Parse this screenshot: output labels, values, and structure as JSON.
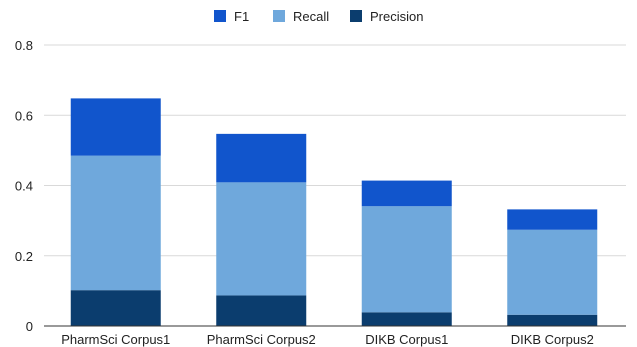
{
  "chart_data": {
    "type": "bar",
    "stacked": true,
    "categories": [
      "PharmSci Corpus1",
      "PharmSci Corpus2",
      "DIKB Corpus1",
      "DIKB Corpus2"
    ],
    "series": [
      {
        "name": "Precision",
        "values": [
          0.102,
          0.087,
          0.039,
          0.032
        ],
        "color": "#0b3d6e"
      },
      {
        "name": "Recall",
        "values": [
          0.383,
          0.322,
          0.302,
          0.242
        ],
        "color": "#6fa8dc"
      },
      {
        "name": "F1",
        "values": [
          0.163,
          0.138,
          0.073,
          0.058
        ],
        "color": "#1155cc"
      }
    ],
    "legend_order": [
      "F1",
      "Recall",
      "Precision"
    ],
    "legend_position": "top",
    "ylim": [
      0,
      0.8
    ],
    "yticks": [
      0,
      0.2,
      0.4,
      0.6,
      0.8
    ],
    "ytick_labels": [
      "0",
      "0.2",
      "0.4",
      "0.6",
      "0.8"
    ],
    "grid": true
  }
}
